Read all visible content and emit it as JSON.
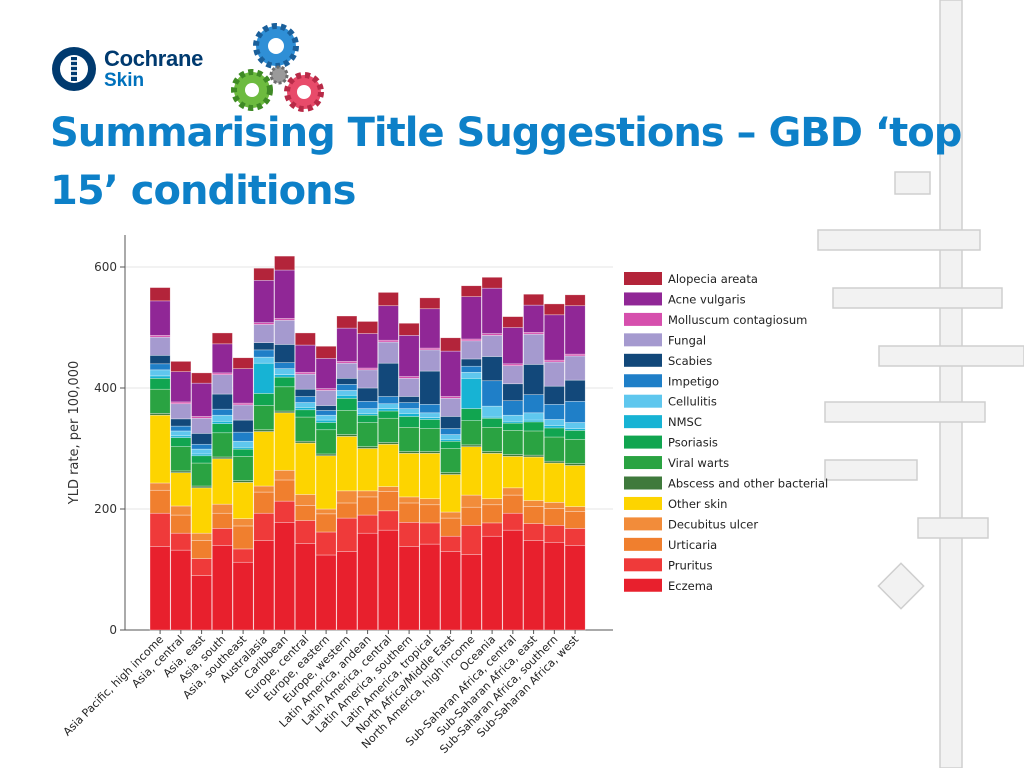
{
  "logo": {
    "line1": "Cochrane",
    "line2": "Skin"
  },
  "title": "Summarising Title Suggestions – GBD ‘top 15’ conditions",
  "colors": {
    "title": "#0d80c8",
    "logo_dark": "#003a6f",
    "logo_blue": "#0071bc"
  },
  "chart_data": {
    "type": "bar",
    "stacked": true,
    "title": "",
    "xlabel": "",
    "ylabel": "YLD rate, per 100,000",
    "ylim": [
      0,
      650
    ],
    "yticks": [
      0,
      200,
      400,
      600
    ],
    "grid": true,
    "legend_position": "right",
    "categories": [
      "Asia Pacific, high income",
      "Asia, central",
      "Asia, east",
      "Asia, south",
      "Asia, southeast",
      "Australasia",
      "Caribbean",
      "Europe, central",
      "Europe, eastern",
      "Europe, western",
      "Latin America, andean",
      "Latin America, central",
      "Latin America, southern",
      "Latin America, tropical",
      "North Africa/Middle East",
      "North America, high income",
      "Oceania",
      "Sub-Saharan Africa, central",
      "Sub-Saharan Africa, east",
      "Sub-Saharan Africa, southern",
      "Sub-Saharan Africa, west"
    ],
    "series": [
      {
        "name": "Eczema",
        "color": "#e8202d",
        "values": [
          138,
          132,
          90,
          140,
          112,
          148,
          178,
          143,
          124,
          130,
          160,
          165,
          138,
          142,
          130,
          125,
          155,
          165,
          148,
          145,
          140
        ]
      },
      {
        "name": "Pruritus",
        "color": "#ef3a3a",
        "values": [
          55,
          28,
          28,
          28,
          22,
          45,
          35,
          38,
          38,
          55,
          30,
          32,
          40,
          35,
          25,
          48,
          22,
          28,
          28,
          28,
          28
        ]
      },
      {
        "name": "Urticaria",
        "color": "#f07f2e",
        "values": [
          38,
          30,
          30,
          25,
          38,
          35,
          35,
          25,
          30,
          25,
          30,
          32,
          32,
          30,
          30,
          30,
          30,
          30,
          28,
          28,
          28
        ]
      },
      {
        "name": "Decubitus ulcer",
        "color": "#f28c3a",
        "values": [
          12,
          15,
          12,
          15,
          12,
          10,
          16,
          18,
          8,
          20,
          10,
          8,
          10,
          10,
          10,
          20,
          10,
          12,
          10,
          10,
          8
        ]
      },
      {
        "name": "Other skin",
        "color": "#fdd400",
        "values": [
          112,
          55,
          75,
          75,
          60,
          90,
          95,
          85,
          88,
          90,
          70,
          70,
          72,
          75,
          62,
          80,
          75,
          52,
          72,
          65,
          68
        ]
      },
      {
        "name": "Abscess and other bacterial",
        "color": "#3f7a3c",
        "values": [
          3,
          3,
          3,
          3,
          3,
          3,
          3,
          3,
          3,
          3,
          3,
          3,
          3,
          3,
          3,
          3,
          3,
          3,
          3,
          3,
          3
        ]
      },
      {
        "name": "Viral warts",
        "color": "#2aa342",
        "values": [
          40,
          40,
          38,
          40,
          40,
          40,
          40,
          40,
          40,
          40,
          40,
          40,
          40,
          38,
          40,
          40,
          40,
          40,
          40,
          40,
          40
        ]
      },
      {
        "name": "Psoriasis",
        "color": "#11a550",
        "values": [
          18,
          15,
          12,
          15,
          12,
          20,
          16,
          12,
          12,
          20,
          12,
          12,
          18,
          15,
          12,
          20,
          15,
          12,
          15,
          15,
          15
        ]
      },
      {
        "name": "NMSC",
        "color": "#17b3d4",
        "values": [
          4,
          3,
          3,
          4,
          3,
          50,
          4,
          4,
          4,
          5,
          3,
          4,
          5,
          3,
          3,
          50,
          2,
          3,
          3,
          4,
          3
        ]
      },
      {
        "name": "Cellulitis",
        "color": "#5fc7ee",
        "values": [
          10,
          8,
          8,
          10,
          10,
          10,
          10,
          8,
          8,
          8,
          8,
          8,
          8,
          8,
          8,
          10,
          18,
          10,
          12,
          10,
          10
        ]
      },
      {
        "name": "Impetigo",
        "color": "#1f7fc8",
        "values": [
          10,
          8,
          8,
          10,
          15,
          12,
          10,
          10,
          8,
          10,
          12,
          12,
          10,
          14,
          10,
          10,
          42,
          24,
          30,
          25,
          35
        ]
      },
      {
        "name": "Scabies",
        "color": "#12487a",
        "values": [
          14,
          12,
          18,
          25,
          20,
          12,
          30,
          12,
          8,
          10,
          22,
          55,
          10,
          55,
          20,
          12,
          40,
          28,
          50,
          30,
          35
        ]
      },
      {
        "name": "Fungal",
        "color": "#a59acf",
        "values": [
          30,
          25,
          25,
          32,
          25,
          30,
          40,
          25,
          25,
          25,
          30,
          35,
          30,
          35,
          30,
          30,
          35,
          30,
          50,
          40,
          40
        ]
      },
      {
        "name": "Molluscum contagiosum",
        "color": "#d64fad",
        "values": [
          3,
          3,
          3,
          3,
          3,
          3,
          3,
          3,
          3,
          3,
          3,
          3,
          3,
          3,
          3,
          3,
          3,
          3,
          3,
          3,
          3
        ]
      },
      {
        "name": "Acne vulgaris",
        "color": "#902796",
        "values": [
          57,
          50,
          55,
          48,
          57,
          70,
          80,
          45,
          50,
          55,
          57,
          57,
          68,
          65,
          75,
          70,
          75,
          60,
          45,
          75,
          80
        ]
      },
      {
        "name": "Alopecia areata",
        "color": "#b3243a",
        "values": [
          22,
          17,
          17,
          18,
          18,
          20,
          23,
          20,
          20,
          20,
          20,
          22,
          20,
          18,
          22,
          18,
          18,
          18,
          18,
          18,
          18
        ]
      }
    ]
  }
}
